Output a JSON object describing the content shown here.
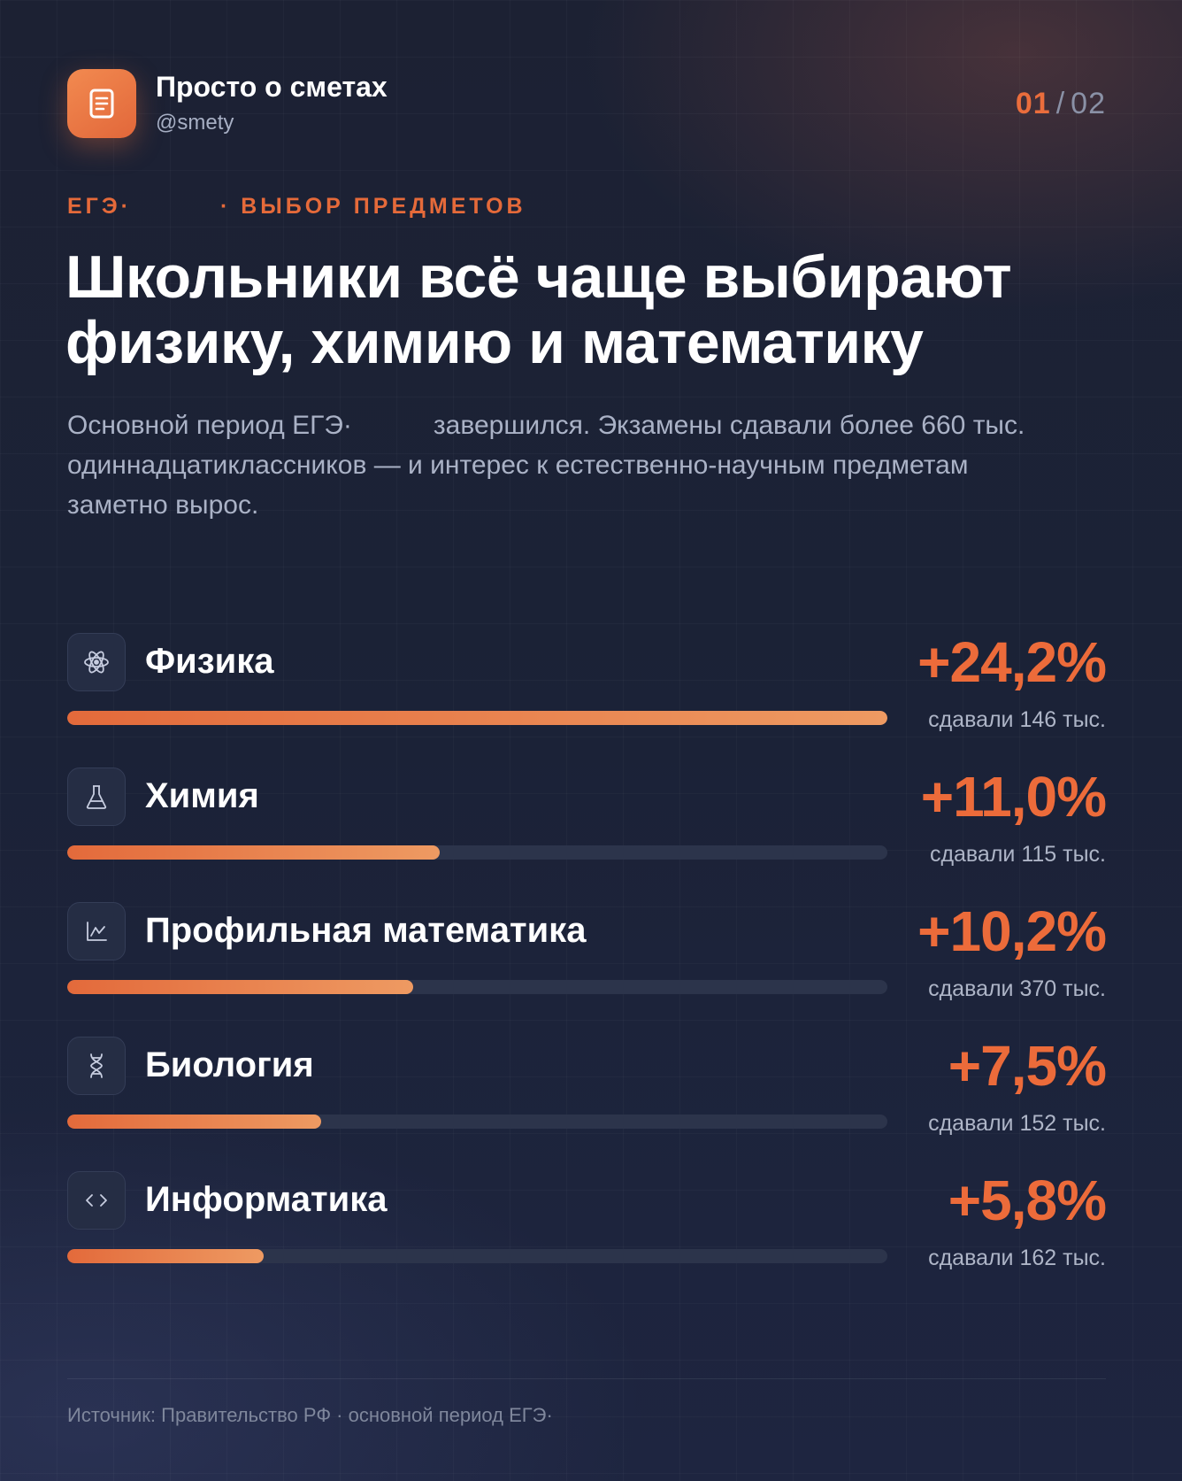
{
  "brand": {
    "name": "Просто о сметах",
    "handle": "@smety",
    "icon": "document-icon",
    "accent": "#ea6d3c"
  },
  "pagination": {
    "current": "01",
    "separator": "/",
    "total": "02"
  },
  "kicker": {
    "left": "ЕГЭ·",
    "right": "· ВЫБОР ПРЕДМЕТОВ"
  },
  "headline": {
    "line1": "Школьники всё чаще выбирают",
    "line2": "физику, химию и математику"
  },
  "lead": {
    "part1": "Основной период ЕГЭ·",
    "part2": "завершился. Экзамены сдавали более 660 тыс. одиннадцатиклассников — и интерес к естественно-научным предметам заметно вырос."
  },
  "subjects": [
    {
      "name": "Физика",
      "change": "+24,2%",
      "value": 24.2,
      "takers": "сдавали 146 тыс.",
      "icon": "atom-icon"
    },
    {
      "name": "Химия",
      "change": "+11,0%",
      "value": 11.0,
      "takers": "сдавали 115 тыс.",
      "icon": "flask-icon"
    },
    {
      "name": "Профильная математика",
      "change": "+10,2%",
      "value": 10.2,
      "takers": "сдавали 370 тыс.",
      "icon": "chart-line-icon"
    },
    {
      "name": "Биология",
      "change": "+7,5%",
      "value": 7.5,
      "takers": "сдавали 152 тыс.",
      "icon": "dna-icon"
    },
    {
      "name": "Информатика",
      "change": "+5,8%",
      "value": 5.8,
      "takers": "сдавали 162 тыс.",
      "icon": "code-icon"
    }
  ],
  "footer": {
    "source": "Источник: Правительство РФ · основной период ЕГЭ·"
  },
  "colors": {
    "background": "#1b2237",
    "bar_start": "#e36a3b",
    "bar_end": "#ee9a62",
    "track": "#2c344b"
  }
}
